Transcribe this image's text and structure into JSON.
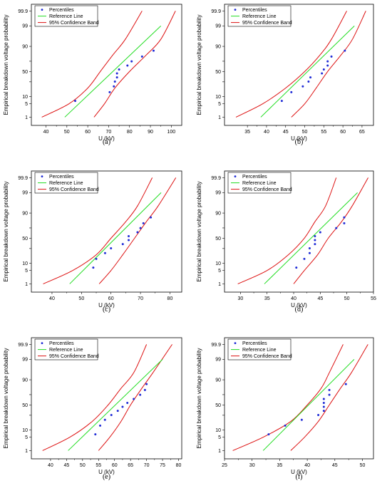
{
  "colors": {
    "points": "#1f2bd6",
    "reference": "#22dd22",
    "band": "#dd1111"
  },
  "chart_data": [
    {
      "type": "scatter",
      "caption": "(a)",
      "xlabel": "U (kV)",
      "ylabel": "Empirical breakdown voltage probability",
      "xlim": [
        33,
        105
      ],
      "xticks": [
        40,
        50,
        60,
        70,
        80,
        90,
        100
      ],
      "yticks": [
        1,
        5,
        10,
        30,
        50,
        70,
        90,
        99,
        99.9
      ],
      "ytick_labels": [
        "1",
        "5",
        "10",
        "",
        "50",
        "",
        "90",
        "99",
        "99.9"
      ],
      "legend": [
        "Percentiles",
        "Reference Line",
        "95% Confidence Band"
      ],
      "series": [
        {
          "name": "Percentiles",
          "x": [
            54,
            70.5,
            72.5,
            73,
            74,
            74,
            75,
            79,
            81,
            86,
            91.5
          ],
          "y": [
            6.7,
            14.6,
            22.5,
            30.4,
            38.3,
            46.2,
            54.1,
            61.9,
            69.8,
            77.7,
            85.6
          ]
        },
        {
          "name": "Reference Line",
          "x": [
            49,
            95
          ],
          "y": [
            1,
            99
          ]
        },
        {
          "name": "95% Confidence Band",
          "lower_x": [
            38,
            51,
            60,
            66,
            72,
            78,
            86
          ],
          "lower_y": [
            1,
            5,
            20,
            50,
            80,
            95,
            99.9
          ],
          "upper_x": [
            63,
            68,
            73,
            80,
            88,
            95,
            102
          ],
          "upper_y": [
            1,
            5,
            20,
            50,
            80,
            95,
            99.9
          ]
        }
      ]
    },
    {
      "type": "scatter",
      "caption": "(b)",
      "xlabel": "U (kV)",
      "ylabel": "Empirical breakdown voltage probability",
      "xlim": [
        29,
        68
      ],
      "xticks": [
        35,
        40,
        45,
        50,
        55,
        60,
        65
      ],
      "yticks": [
        1,
        5,
        10,
        30,
        50,
        70,
        90,
        99,
        99.9
      ],
      "ytick_labels": [
        "1",
        "5",
        "10",
        "",
        "50",
        "",
        "90",
        "99",
        "99.9"
      ],
      "legend": [
        "Percentiles",
        "Reference Line",
        "95% Confidence Band"
      ],
      "series": [
        {
          "name": "Percentiles",
          "x": [
            44,
            46.5,
            49.5,
            51,
            51.5,
            54.5,
            55,
            56,
            56,
            57,
            60.5
          ],
          "y": [
            6.7,
            14.6,
            22.5,
            30.4,
            38.3,
            46.2,
            54.1,
            61.9,
            69.8,
            77.7,
            85.6
          ]
        },
        {
          "name": "Reference Line",
          "x": [
            38.5,
            63
          ],
          "y": [
            1,
            99
          ]
        },
        {
          "name": "95% Confidence Band",
          "lower_x": [
            32,
            39,
            45,
            50,
            54,
            57,
            61
          ],
          "lower_y": [
            1,
            5,
            20,
            50,
            80,
            95,
            99.9
          ],
          "upper_x": [
            46.5,
            50,
            53,
            56,
            59.5,
            62.5,
            66
          ],
          "upper_y": [
            1,
            5,
            20,
            50,
            80,
            95,
            99.9
          ]
        }
      ]
    },
    {
      "type": "scatter",
      "caption": "(c)",
      "xlabel": "U (kV)",
      "ylabel": "Empirical breakdown voltage probability",
      "xlim": [
        33,
        84
      ],
      "xticks": [
        40,
        50,
        60,
        70,
        80
      ],
      "yticks": [
        1,
        5,
        10,
        30,
        50,
        70,
        90,
        99,
        99.9
      ],
      "ytick_labels": [
        "1",
        "5",
        "10",
        "",
        "50",
        "",
        "90",
        "99",
        "99.9"
      ],
      "legend": [
        "Percentiles",
        "Reference Line",
        "95% Confidence Band"
      ],
      "series": [
        {
          "name": "Percentiles",
          "x": [
            54,
            55,
            58,
            60,
            64,
            66,
            66,
            69,
            70,
            71,
            73.5
          ],
          "y": [
            6.7,
            14.6,
            22.5,
            30.4,
            38.3,
            46.2,
            54.1,
            61.9,
            69.8,
            77.7,
            85.6
          ]
        },
        {
          "name": "Reference Line",
          "x": [
            46,
            77
          ],
          "y": [
            1,
            99
          ]
        },
        {
          "name": "95% Confidence Band",
          "lower_x": [
            37,
            47,
            55,
            60,
            65,
            69,
            74
          ],
          "lower_y": [
            1,
            5,
            20,
            50,
            80,
            95,
            99.9
          ],
          "upper_x": [
            56,
            60,
            64,
            68,
            72,
            76,
            82
          ],
          "upper_y": [
            1,
            5,
            20,
            50,
            80,
            95,
            99.9
          ]
        }
      ]
    },
    {
      "type": "scatter",
      "caption": "(d)",
      "xlabel": "U (kV)",
      "ylabel": "Empirical breakdown voltage probability",
      "xlim": [
        27,
        55
      ],
      "xticks": [
        30,
        35,
        40,
        45,
        50,
        55
      ],
      "yticks": [
        1,
        5,
        10,
        30,
        50,
        70,
        90,
        99,
        99.9
      ],
      "ytick_labels": [
        "1",
        "5",
        "10",
        "",
        "50",
        "",
        "90",
        "99",
        "99.9"
      ],
      "legend": [
        "Percentiles",
        "Reference Line",
        "95% Confidence Band"
      ],
      "series": [
        {
          "name": "Percentiles",
          "x": [
            40.5,
            42,
            43,
            43,
            44,
            44,
            44,
            45,
            48,
            49.5,
            49.5
          ],
          "y": [
            6.7,
            14.6,
            22.5,
            30.4,
            38.3,
            46.2,
            54.1,
            61.9,
            69.8,
            77.7,
            85.6
          ]
        },
        {
          "name": "Reference Line",
          "x": [
            34.5,
            52
          ],
          "y": [
            1,
            99
          ]
        },
        {
          "name": "95% Confidence Band",
          "lower_x": [
            29.5,
            35,
            39,
            42,
            44,
            46,
            48
          ],
          "lower_y": [
            1,
            5,
            20,
            50,
            80,
            95,
            99.9
          ],
          "upper_x": [
            40,
            42,
            44.5,
            46.5,
            49,
            51,
            54
          ],
          "upper_y": [
            1,
            5,
            20,
            50,
            80,
            95,
            99.9
          ]
        }
      ]
    },
    {
      "type": "scatter",
      "caption": "(e)",
      "xlabel": "U (kV)",
      "ylabel": "Empirical breakdown voltage probability",
      "xlim": [
        34,
        81
      ],
      "xticks": [
        40,
        45,
        50,
        55,
        60,
        65,
        70,
        75,
        80
      ],
      "yticks": [
        1,
        5,
        10,
        30,
        50,
        70,
        90,
        99,
        99.9
      ],
      "ytick_labels": [
        "1",
        "5",
        "10",
        "",
        "50",
        "",
        "90",
        "99",
        "99.9"
      ],
      "legend": [
        "Percentiles",
        "Reference Line",
        "95% Confidence Band"
      ],
      "series": [
        {
          "name": "Percentiles",
          "x": [
            54,
            55.5,
            57,
            59,
            61,
            62.5,
            64,
            66,
            68,
            69.5,
            70
          ],
          "y": [
            6.7,
            14.6,
            22.5,
            30.4,
            38.3,
            46.2,
            54.1,
            61.9,
            69.8,
            77.7,
            85.6
          ]
        },
        {
          "name": "Reference Line",
          "x": [
            45.5,
            75
          ],
          "y": [
            1,
            99
          ]
        },
        {
          "name": "95% Confidence Band",
          "lower_x": [
            37.5,
            46,
            53,
            58,
            62,
            66,
            70
          ],
          "lower_y": [
            1,
            5,
            20,
            50,
            80,
            95,
            99.9
          ],
          "upper_x": [
            55,
            58.5,
            62,
            65,
            68.5,
            72,
            78
          ],
          "upper_y": [
            1,
            5,
            20,
            50,
            80,
            95,
            99.9
          ]
        }
      ]
    },
    {
      "type": "scatter",
      "caption": "(f)",
      "xlabel": "U (kV)",
      "ylabel": "Empirical breakdown voltage probability",
      "xlim": [
        25,
        52
      ],
      "xticks": [
        25,
        30,
        35,
        40,
        45,
        50
      ],
      "yticks": [
        1,
        5,
        10,
        30,
        50,
        70,
        90,
        99,
        99.9
      ],
      "ytick_labels": [
        "1",
        "5",
        "10",
        "",
        "50",
        "",
        "90",
        "99",
        "99.9"
      ],
      "legend": [
        "Percentiles",
        "Reference Line",
        "95% Confidence Band"
      ],
      "series": [
        {
          "name": "Percentiles",
          "x": [
            33,
            36,
            39,
            42,
            43,
            43,
            43,
            43,
            44,
            44,
            47
          ],
          "y": [
            6.7,
            14.6,
            22.5,
            30.4,
            38.3,
            46.2,
            54.1,
            61.9,
            69.8,
            77.7,
            85.6
          ]
        },
        {
          "name": "Reference Line",
          "x": [
            32,
            48.5
          ],
          "y": [
            1,
            99
          ]
        },
        {
          "name": "95% Confidence Band",
          "lower_x": [
            26.5,
            32,
            37,
            40,
            42.5,
            44,
            46.5
          ],
          "lower_y": [
            1,
            5,
            20,
            50,
            80,
            95,
            99.9
          ],
          "upper_x": [
            37,
            39.5,
            42,
            44,
            46,
            48,
            51
          ],
          "upper_y": [
            1,
            5,
            20,
            50,
            80,
            95,
            99.9
          ]
        }
      ]
    }
  ]
}
